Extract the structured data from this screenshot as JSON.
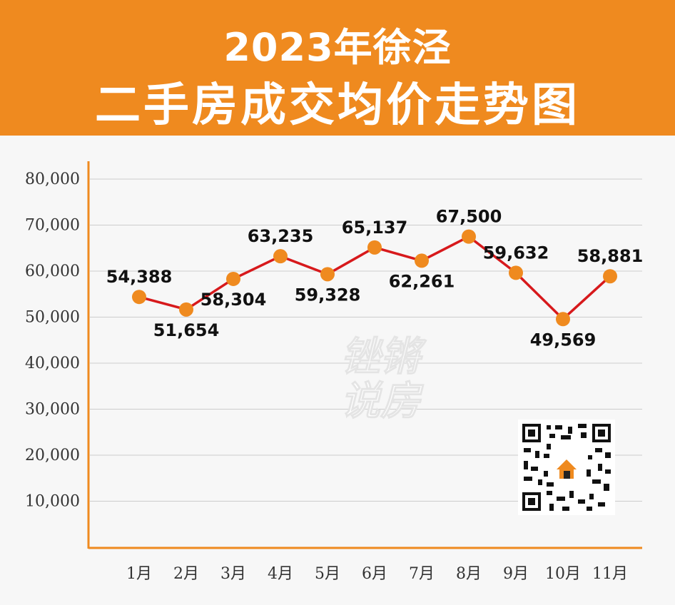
{
  "header": {
    "title_line1": "2023年徐泾",
    "title_line2": "二手房成交均价走势图"
  },
  "watermark": {
    "line1": "锉锵",
    "line2": "说房"
  },
  "colors": {
    "accent": "#ef8a1f",
    "line": "#d7191c",
    "marker": "#ef8a1f",
    "axis": "#ef8a1f",
    "grid": "#cccccc"
  },
  "chart_data": {
    "type": "line",
    "title": "2023年徐泾 二手房成交均价走势图",
    "xlabel": "",
    "ylabel": "",
    "categories": [
      "1月",
      "2月",
      "3月",
      "4月",
      "5月",
      "6月",
      "7月",
      "8月",
      "9月",
      "10月",
      "11月"
    ],
    "values": [
      54388,
      51654,
      58304,
      63235,
      59328,
      65137,
      62261,
      67500,
      59632,
      49569,
      58881
    ],
    "data_labels": [
      "54,388",
      "51,654",
      "58,304",
      "63,235",
      "59,328",
      "65,137",
      "62,261",
      "67,500",
      "59,632",
      "49,569",
      "58,881"
    ],
    "label_side": [
      "above",
      "below",
      "below",
      "above",
      "below",
      "above",
      "below",
      "above",
      "above",
      "below",
      "above"
    ],
    "ylim": [
      0,
      80000
    ],
    "yticks": [
      10000,
      20000,
      30000,
      40000,
      50000,
      60000,
      70000,
      80000
    ],
    "ytick_labels": [
      "10,000",
      "20,000",
      "30,000",
      "40,000",
      "50,000",
      "60,000",
      "70,000",
      "80,000"
    ],
    "grid": true,
    "legend": "none"
  }
}
